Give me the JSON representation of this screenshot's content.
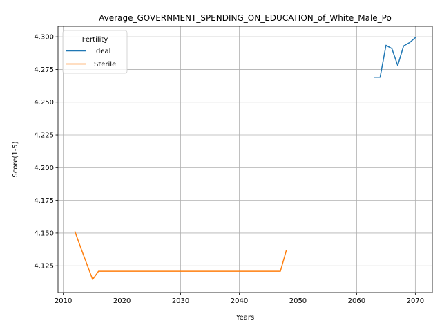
{
  "chart_data": {
    "type": "line",
    "title": "Average_GOVERNMENT_SPENDING_ON_EDUCATION_of_White_Male_Po",
    "xlabel": "Years",
    "ylabel": "Score(1-5)",
    "xlim": [
      2009.1,
      2072.9
    ],
    "ylim": [
      4.1045,
      4.308
    ],
    "xticks": [
      2010,
      2020,
      2030,
      2040,
      2050,
      2060,
      2070
    ],
    "yticks": [
      4.125,
      4.15,
      4.175,
      4.2,
      4.225,
      4.25,
      4.275,
      4.3
    ],
    "grid": true,
    "legend": {
      "title": "Fertility",
      "placement": "top-left"
    },
    "series": [
      {
        "name": "Ideal",
        "color": "#1f77b4",
        "x": [
          2063,
          2064,
          2065,
          2066,
          2067,
          2068,
          2069,
          2070
        ],
        "y": [
          4.269,
          4.269,
          4.2935,
          4.291,
          4.278,
          4.293,
          4.2955,
          4.2993
        ]
      },
      {
        "name": "Sterile",
        "color": "#ff7f0e",
        "x": [
          2012,
          2013,
          2014,
          2015,
          2016,
          2017,
          2018,
          2019,
          2020,
          2021,
          2022,
          2023,
          2024,
          2025,
          2026,
          2027,
          2028,
          2029,
          2030,
          2031,
          2032,
          2033,
          2034,
          2035,
          2036,
          2037,
          2038,
          2039,
          2040,
          2041,
          2042,
          2043,
          2044,
          2045,
          2046,
          2047,
          2048
        ],
        "y": [
          4.151,
          4.1385,
          4.1265,
          4.1145,
          4.1208,
          4.1208,
          4.1208,
          4.1208,
          4.1208,
          4.1208,
          4.1208,
          4.1208,
          4.1208,
          4.1208,
          4.1208,
          4.1208,
          4.1208,
          4.1208,
          4.1208,
          4.1208,
          4.1208,
          4.1208,
          4.1208,
          4.1208,
          4.1208,
          4.1208,
          4.1208,
          4.1208,
          4.1208,
          4.1208,
          4.1208,
          4.1208,
          4.1208,
          4.1208,
          4.1208,
          4.1208,
          4.1365
        ]
      }
    ]
  }
}
